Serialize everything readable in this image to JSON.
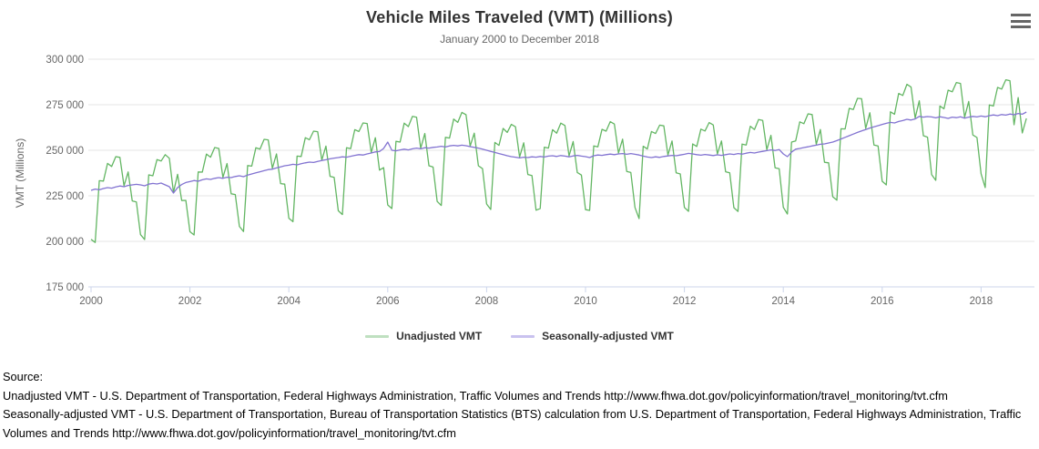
{
  "chart": {
    "title": "Vehicle Miles Traveled (VMT) (Millions)",
    "subtitle": "January 2000 to December 2018",
    "context_menu_icon": "hamburger-icon"
  },
  "colors": {
    "unadjusted_line": "#63b663",
    "adjusted_line": "#8273d1",
    "legend_unadjusted_swatch": "#bfe0c0",
    "legend_adjusted_swatch": "#c9c2ef",
    "gridline": "#e6e6e6",
    "axis_line": "#ccd6eb",
    "axis_label": "#666666",
    "title_text": "#333333",
    "subtitle_text": "#666666",
    "menu_icon": "#666666"
  },
  "chart_data": {
    "type": "line",
    "title": "Vehicle Miles Traveled (VMT) (Millions)",
    "subtitle": "January 2000 to December 2018",
    "xlabel": "",
    "ylabel": "VMT (Millions)",
    "x_unit": "month",
    "x_range_start": "2000-01",
    "x_range_end": "2018-12",
    "ylim": [
      175000,
      300000
    ],
    "grid": "horizontal",
    "legend_position": "bottom-center",
    "y_ticks": [
      {
        "v": 175000,
        "label": "175 000"
      },
      {
        "v": 200000,
        "label": "200 000"
      },
      {
        "v": 225000,
        "label": "225 000"
      },
      {
        "v": 250000,
        "label": "250 000"
      },
      {
        "v": 275000,
        "label": "275 000"
      },
      {
        "v": 300000,
        "label": "300 000"
      }
    ],
    "x_ticks": [
      {
        "year": 2000,
        "label": "2000"
      },
      {
        "year": 2002,
        "label": "2002"
      },
      {
        "year": 2004,
        "label": "2004"
      },
      {
        "year": 2006,
        "label": "2006"
      },
      {
        "year": 2008,
        "label": "2008"
      },
      {
        "year": 2010,
        "label": "2010"
      },
      {
        "year": 2012,
        "label": "2012"
      },
      {
        "year": 2014,
        "label": "2014"
      },
      {
        "year": 2016,
        "label": "2016"
      },
      {
        "year": 2018,
        "label": "2018"
      }
    ],
    "series": [
      {
        "name": "Unadjusted VMT",
        "color": "#63b663",
        "values": [
          201100,
          199400,
          233300,
          233100,
          242800,
          241100,
          246500,
          246100,
          230500,
          238100,
          222200,
          221600,
          203700,
          201000,
          236500,
          236000,
          244900,
          244100,
          247600,
          245600,
          226900,
          236800,
          222400,
          222500,
          205300,
          203500,
          238100,
          238000,
          247900,
          246200,
          251500,
          251000,
          235100,
          242700,
          226100,
          225700,
          208200,
          205400,
          241600,
          241300,
          251400,
          250600,
          256000,
          255700,
          240100,
          248000,
          231700,
          231400,
          212700,
          210800,
          246800,
          246600,
          256900,
          255800,
          260500,
          260200,
          244600,
          252300,
          235700,
          235100,
          216800,
          214700,
          251400,
          250900,
          261300,
          260300,
          265000,
          264700,
          248800,
          256900,
          239100,
          240500,
          220000,
          218000,
          254900,
          254500,
          264900,
          263000,
          268600,
          268100,
          251100,
          259200,
          241500,
          240800,
          221900,
          219700,
          257100,
          256700,
          267100,
          265300,
          270800,
          269500,
          252300,
          259400,
          241500,
          239900,
          220500,
          217500,
          254300,
          252700,
          262000,
          259800,
          264200,
          262900,
          246300,
          254100,
          236700,
          236100,
          217100,
          218000,
          251700,
          251200,
          261300,
          259400,
          264900,
          263600,
          246900,
          254800,
          237800,
          236400,
          217400,
          217000,
          252400,
          251900,
          261500,
          260500,
          265700,
          264400,
          248500,
          256100,
          238400,
          237800,
          218600,
          212500,
          252200,
          250700,
          260300,
          259200,
          263800,
          263400,
          247400,
          255100,
          237600,
          237000,
          218600,
          216500,
          253500,
          252100,
          261600,
          260600,
          265200,
          263900,
          248000,
          255100,
          238200,
          237600,
          218500,
          216400,
          253400,
          252900,
          263200,
          261400,
          266900,
          266400,
          250300,
          258200,
          240400,
          239900,
          218700,
          215000,
          254500,
          255100,
          265600,
          264600,
          270000,
          269600,
          253300,
          261400,
          243400,
          243100,
          224500,
          222600,
          261800,
          261700,
          273000,
          272400,
          278500,
          278300,
          262000,
          270600,
          252900,
          252400,
          233000,
          231000,
          271100,
          269800,
          281200,
          280100,
          286200,
          284700,
          267700,
          277200,
          258000,
          257200,
          236600,
          233500,
          274300,
          272800,
          283000,
          282100,
          287200,
          286700,
          268100,
          276800,
          258400,
          257000,
          237100,
          229500,
          274900,
          274300,
          284500,
          283600,
          288700,
          288200,
          264000,
          278900,
          259500,
          267500
        ]
      },
      {
        "name": "Seasonally-adjusted VMT",
        "color": "#8273d1",
        "values": [
          228000,
          228700,
          228300,
          229000,
          229500,
          229200,
          229900,
          230400,
          230000,
          230700,
          231000,
          231300,
          231000,
          230500,
          231400,
          231800,
          231500,
          232000,
          231000,
          230000,
          226500,
          229500,
          231200,
          232300,
          232800,
          233400,
          233000,
          233800,
          234300,
          234000,
          234600,
          235000,
          234600,
          235200,
          235000,
          235600,
          236000,
          235500,
          236400,
          237000,
          237600,
          238200,
          238800,
          239400,
          239600,
          240300,
          240900,
          241500,
          241800,
          242300,
          242000,
          242600,
          243100,
          243500,
          243300,
          243900,
          244400,
          244800,
          245300,
          245700,
          246000,
          246400,
          246200,
          246700,
          247200,
          247600,
          247400,
          248000,
          248500,
          249100,
          249300,
          251000,
          254500,
          250000,
          249700,
          250200,
          250600,
          250200,
          250800,
          251200,
          250800,
          251400,
          251200,
          251600,
          251800,
          252200,
          251800,
          252400,
          252700,
          252400,
          252800,
          252500,
          252000,
          251600,
          251200,
          250600,
          250000,
          249400,
          248800,
          248200,
          247600,
          247000,
          246500,
          246200,
          245800,
          246200,
          246000,
          246400,
          246200,
          246600,
          246300,
          246800,
          247000,
          246600,
          247100,
          246800,
          246400,
          246900,
          247200,
          246800,
          246500,
          246000,
          247000,
          247400,
          247200,
          247600,
          247900,
          247600,
          248000,
          248200,
          247800,
          248200,
          247800,
          247400,
          246800,
          246300,
          246000,
          246400,
          246100,
          246600,
          246900,
          247200,
          247000,
          247400,
          247800,
          248300,
          248000,
          247600,
          247300,
          247700,
          247400,
          247100,
          247500,
          247200,
          247600,
          248000,
          247700,
          248200,
          247900,
          248400,
          248800,
          248500,
          249000,
          249400,
          249800,
          250200,
          249900,
          250400,
          248000,
          246500,
          249000,
          250600,
          251000,
          251500,
          251900,
          252400,
          252800,
          253300,
          253500,
          254000,
          254500,
          255300,
          256200,
          257100,
          258000,
          258900,
          259800,
          260600,
          261400,
          262200,
          262900,
          263500,
          264200,
          264800,
          265300,
          265000,
          265800,
          266300,
          267000,
          266600,
          267200,
          268600,
          268200,
          268500,
          268300,
          267800,
          268400,
          268000,
          267500,
          268200,
          267900,
          268400,
          267600,
          268200,
          268600,
          268300,
          268800,
          268400,
          269000,
          269400,
          269000,
          269600,
          269300,
          269900,
          269500,
          270200,
          269800,
          271000
        ]
      }
    ]
  },
  "legend": {
    "items": [
      {
        "label": "Unadjusted VMT"
      },
      {
        "label": "Seasonally-adjusted VMT"
      }
    ]
  },
  "source": {
    "label": "Source:",
    "unadjusted_line": "Unadjusted VMT - U.S. Department of Transportation, Federal Highways Administration, Traffic Volumes and Trends http://www.fhwa.dot.gov/policyinformation/travel_monitoring/tvt.cfm",
    "adjusted_line": "Seasonally-adjusted VMT - U.S. Department of Transportation, Bureau of Transportation Statistics (BTS) calculation from U.S. Department of Transportation, Federal Highways Administration, Traffic Volumes and Trends http://www.fhwa.dot.gov/policyinformation/travel_monitoring/tvt.cfm"
  }
}
